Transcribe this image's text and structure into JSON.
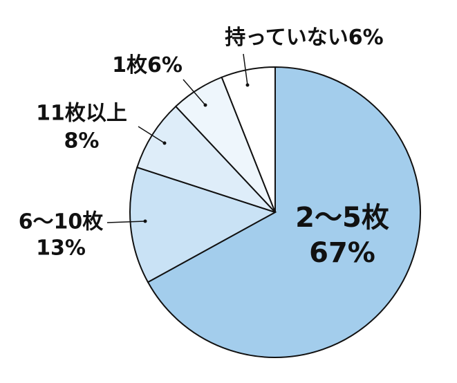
{
  "chart_data": {
    "type": "pie",
    "categories": [
      "2〜5枚",
      "6〜10枚",
      "11枚以上",
      "1枚",
      "持っていない"
    ],
    "values": [
      67,
      13,
      8,
      6,
      6
    ],
    "value_labels": [
      "67%",
      "13%",
      "8%",
      "6%",
      "6%"
    ],
    "colors": [
      "#a3cdec",
      "#c9e2f5",
      "#deedf9",
      "#eef6fc",
      "#ffffff"
    ]
  }
}
